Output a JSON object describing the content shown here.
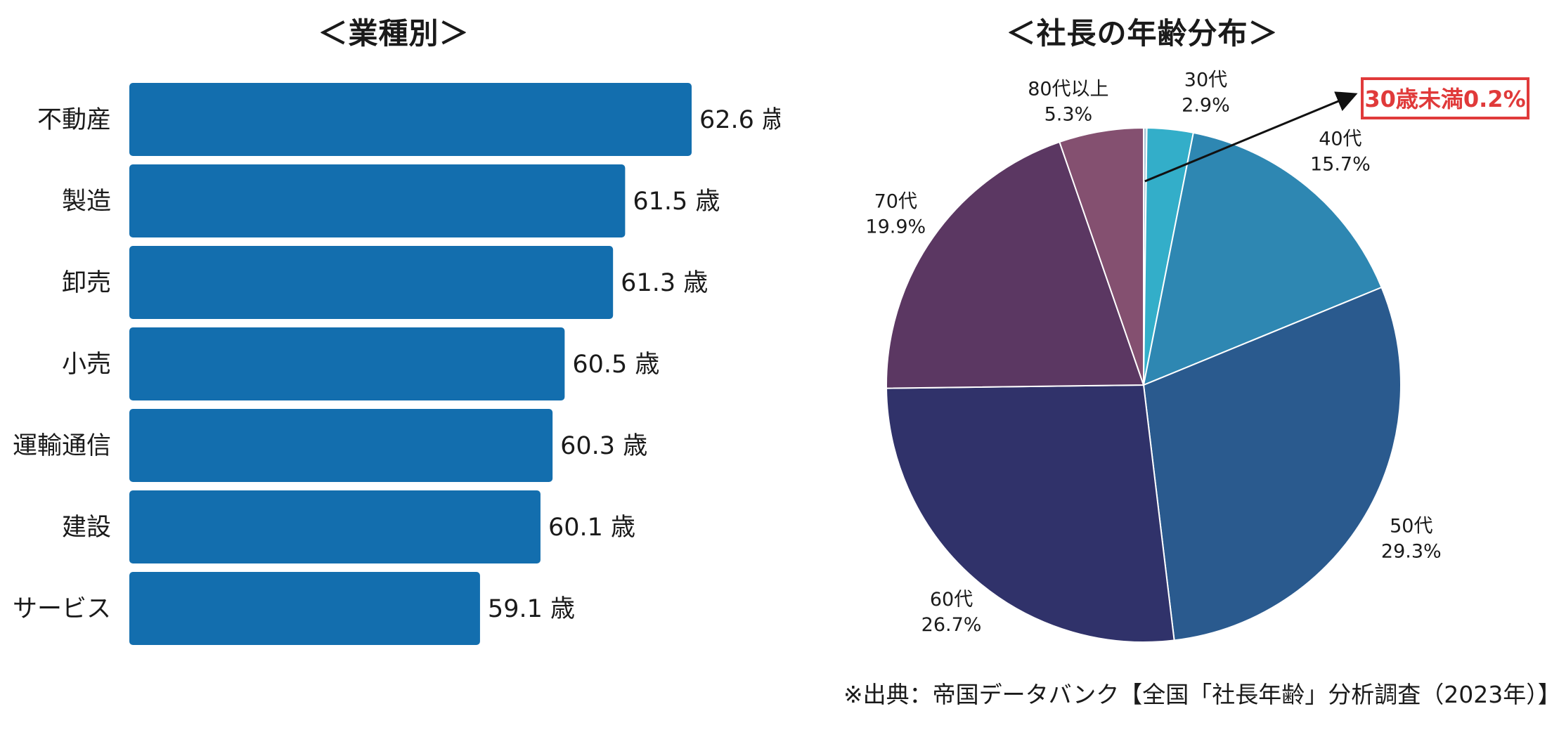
{
  "chart_data": [
    {
      "type": "bar",
      "orientation": "horizontal",
      "title": "＜業種別＞",
      "categories": [
        "不動産",
        "製造",
        "卸売",
        "小売",
        "運輸通信",
        "建設",
        "サービス"
      ],
      "values": [
        62.6,
        61.5,
        61.3,
        60.5,
        60.3,
        60.1,
        59.1
      ],
      "value_suffix": " 歳",
      "value_labels": [
        "62.6 歳",
        "61.5 歳",
        "61.3 歳",
        "60.5 歳",
        "60.3 歳",
        "60.1 歳",
        "59.1 歳"
      ],
      "xlim": [
        53.3,
        62.6
      ],
      "color": "#136eae",
      "grid": false,
      "legend": "none"
    },
    {
      "type": "pie",
      "title": "＜社長の年齢分布＞",
      "slices": [
        {
          "name": "30歳未満",
          "value": 0.2,
          "color": "#a9c8d8",
          "label_lines": []
        },
        {
          "name": "30代",
          "value": 2.9,
          "color": "#33aec9",
          "label_lines": [
            "30代",
            "2.9%"
          ]
        },
        {
          "name": "40代",
          "value": 15.7,
          "color": "#2e87b2",
          "label_lines": [
            "40代",
            "15.7%"
          ]
        },
        {
          "name": "50代",
          "value": 29.3,
          "color": "#2a5a8e",
          "label_lines": [
            "50代",
            "29.3%"
          ]
        },
        {
          "name": "60代",
          "value": 26.7,
          "color": "#30326a",
          "label_lines": [
            "60代",
            "26.7%"
          ]
        },
        {
          "name": "70代",
          "value": 19.9,
          "color": "#5b3762",
          "label_lines": [
            "70代",
            "19.9%"
          ]
        },
        {
          "name": "80代以上",
          "value": 5.3,
          "color": "#845070",
          "label_lines": [
            "80代以上",
            "5.3%"
          ]
        }
      ],
      "start_angle": "12 o'clock, clockwise",
      "callout": "30歳未満0.2%",
      "callout_color": "#e03a3a"
    }
  ],
  "source": "※出典：帝国データバンク【全国「社長年齢」分析調査（2023年）】"
}
